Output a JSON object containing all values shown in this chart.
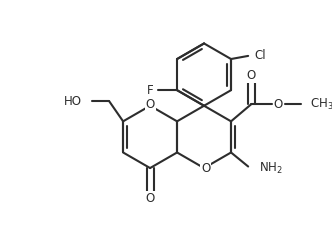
{
  "background": "#ffffff",
  "line_color": "#2d2d2d",
  "line_width": 1.5,
  "font_size": 8.5,
  "figsize": [
    3.32,
    2.52
  ],
  "dpi": 100,
  "xlim": [
    0,
    10
  ],
  "ylim": [
    0,
    8
  ]
}
